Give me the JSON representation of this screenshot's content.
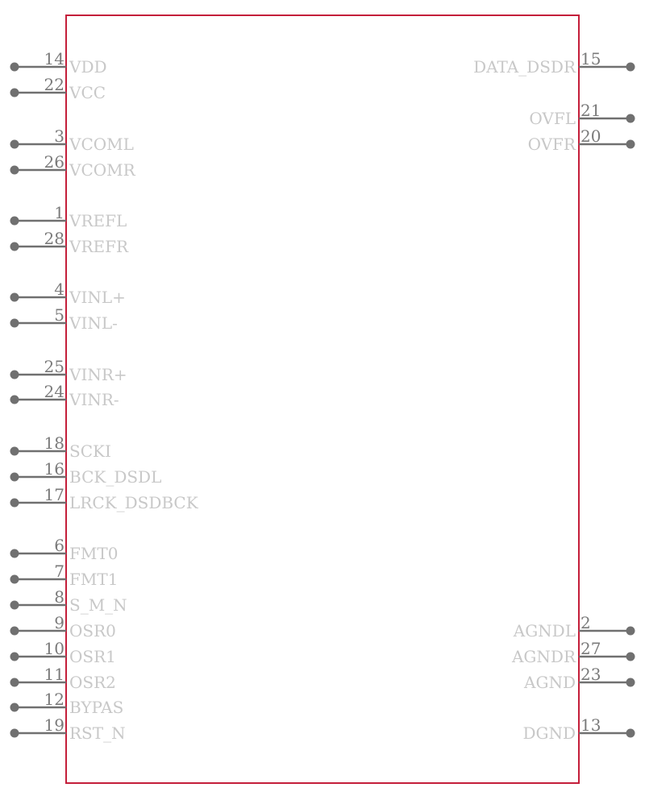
{
  "colors": {
    "body_outline": "#c41e3a",
    "pin_line": "#707070",
    "pin_dot": "#707070",
    "label_text": "#c8c8c8",
    "number_text": "#7a7a7a"
  },
  "component": {
    "left_pins": [
      {
        "number": "14",
        "name": "VDD"
      },
      {
        "number": "22",
        "name": "VCC"
      },
      {
        "number": "3",
        "name": "VCOML"
      },
      {
        "number": "26",
        "name": "VCOMR"
      },
      {
        "number": "1",
        "name": "VREFL"
      },
      {
        "number": "28",
        "name": "VREFR"
      },
      {
        "number": "4",
        "name": "VINL+"
      },
      {
        "number": "5",
        "name": "VINL-"
      },
      {
        "number": "25",
        "name": "VINR+"
      },
      {
        "number": "24",
        "name": "VINR-"
      },
      {
        "number": "18",
        "name": "SCKI"
      },
      {
        "number": "16",
        "name": "BCK_DSDL"
      },
      {
        "number": "17",
        "name": "LRCK_DSDBCK"
      },
      {
        "number": "6",
        "name": "FMT0"
      },
      {
        "number": "7",
        "name": "FMT1"
      },
      {
        "number": "8",
        "name": "S_M_N"
      },
      {
        "number": "9",
        "name": "OSR0"
      },
      {
        "number": "10",
        "name": "OSR1"
      },
      {
        "number": "11",
        "name": "OSR2"
      },
      {
        "number": "12",
        "name": "BYPAS"
      },
      {
        "number": "19",
        "name": "RST_N"
      }
    ],
    "right_pins": [
      {
        "number": "15",
        "name": "DATA_DSDR"
      },
      {
        "number": "21",
        "name": "OVFL"
      },
      {
        "number": "20",
        "name": "OVFR"
      },
      {
        "number": "2",
        "name": "AGNDL"
      },
      {
        "number": "27",
        "name": "AGNDR"
      },
      {
        "number": "23",
        "name": "AGND"
      },
      {
        "number": "13",
        "name": "DGND"
      }
    ]
  }
}
